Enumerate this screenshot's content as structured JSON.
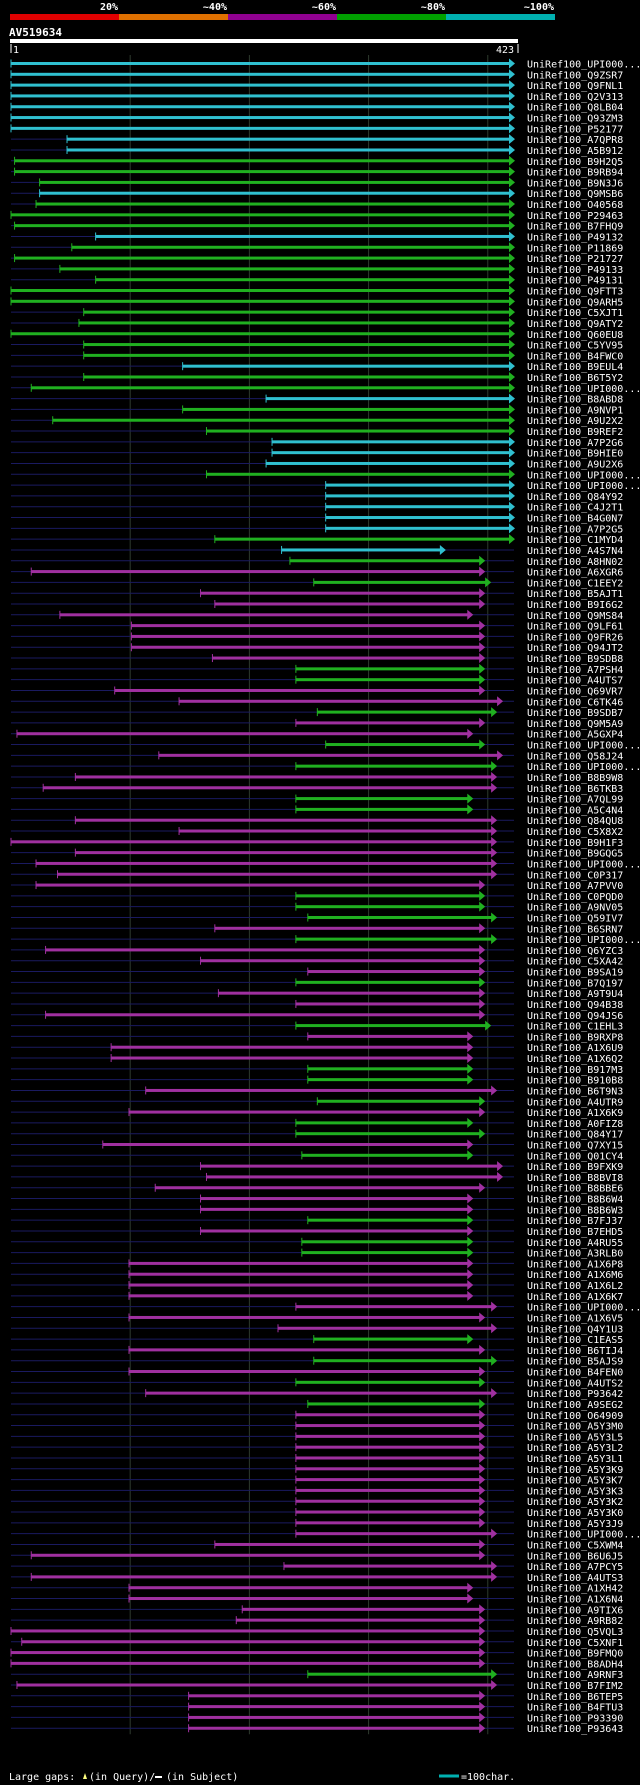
{
  "chart_data": {
    "type": "alignment-overview",
    "query_id": "AV519634",
    "query_start": "1",
    "query_end": "423",
    "query_length": 423,
    "identity_scale": [
      {
        "label": "20%",
        "color": "#e00000"
      },
      {
        "label": "~40%",
        "color": "#e07000"
      },
      {
        "label": "~60%",
        "color": "#900090"
      },
      {
        "label": "~80%",
        "color": "#00a000"
      },
      {
        "label": "~100%",
        "color": "#00b0b0"
      }
    ],
    "footer": {
      "large_gaps_label": "Large gaps:",
      "query_gap_label": "(in Query)/",
      "subject_gap_label": "(in Subject)",
      "scale_label": "=100char."
    },
    "hits": [
      {
        "id": "UniRef100_UPI000...",
        "identity": 5,
        "start": 1,
        "end": 423
      },
      {
        "id": "UniRef100_Q9ZSR7",
        "identity": 5,
        "start": 1,
        "end": 423
      },
      {
        "id": "UniRef100_Q9FNL1",
        "identity": 5,
        "start": 1,
        "end": 423
      },
      {
        "id": "UniRef100_Q2V313",
        "identity": 5,
        "start": 1,
        "end": 423
      },
      {
        "id": "UniRef100_Q8LB04",
        "identity": 5,
        "start": 1,
        "end": 423
      },
      {
        "id": "UniRef100_Q93ZM3",
        "identity": 5,
        "start": 1,
        "end": 423
      },
      {
        "id": "UniRef100_P52177",
        "identity": 5,
        "start": 1,
        "end": 423
      },
      {
        "id": "UniRef100_A7QPR8",
        "identity": 5,
        "start": 48,
        "end": 423
      },
      {
        "id": "UniRef100_A5B912",
        "identity": 5,
        "start": 48,
        "end": 423
      },
      {
        "id": "UniRef100_B9H2Q5",
        "identity": 4,
        "start": 4,
        "end": 423
      },
      {
        "id": "UniRef100_B9RB94",
        "identity": 4,
        "start": 4,
        "end": 423
      },
      {
        "id": "UniRef100_B9N3J6",
        "identity": 4,
        "start": 25,
        "end": 423
      },
      {
        "id": "UniRef100_Q9MSB6",
        "identity": 5,
        "start": 25,
        "end": 423
      },
      {
        "id": "UniRef100_O40568",
        "identity": 4,
        "start": 22,
        "end": 423
      },
      {
        "id": "UniRef100_P29463",
        "identity": 4,
        "start": 1,
        "end": 423
      },
      {
        "id": "UniRef100_B7FHQ9",
        "identity": 4,
        "start": 4,
        "end": 423
      },
      {
        "id": "UniRef100_P49132",
        "identity": 5,
        "start": 72,
        "end": 423
      },
      {
        "id": "UniRef100_P11869",
        "identity": 4,
        "start": 52,
        "end": 423
      },
      {
        "id": "UniRef100_P21727",
        "identity": 4,
        "start": 4,
        "end": 423
      },
      {
        "id": "UniRef100_P49133",
        "identity": 4,
        "start": 42,
        "end": 423
      },
      {
        "id": "UniRef100_P49131",
        "identity": 4,
        "start": 72,
        "end": 423
      },
      {
        "id": "UniRef100_Q9FTT3",
        "identity": 4,
        "start": 1,
        "end": 423
      },
      {
        "id": "UniRef100_Q9ARH5",
        "identity": 4,
        "start": 1,
        "end": 423
      },
      {
        "id": "UniRef100_C5XJT1",
        "identity": 4,
        "start": 62,
        "end": 423
      },
      {
        "id": "UniRef100_Q9ATY2",
        "identity": 4,
        "start": 58,
        "end": 423
      },
      {
        "id": "UniRef100_Q60EU8",
        "identity": 4,
        "start": 1,
        "end": 423
      },
      {
        "id": "UniRef100_C5YV95",
        "identity": 4,
        "start": 62,
        "end": 423
      },
      {
        "id": "UniRef100_B4FWC0",
        "identity": 4,
        "start": 62,
        "end": 423
      },
      {
        "id": "UniRef100_B9EUL4",
        "identity": 5,
        "start": 145,
        "end": 423
      },
      {
        "id": "UniRef100_B6T5Y2",
        "identity": 4,
        "start": 62,
        "end": 423
      },
      {
        "id": "UniRef100_UPI000...",
        "identity": 4,
        "start": 18,
        "end": 423
      },
      {
        "id": "UniRef100_B8ABD8",
        "identity": 5,
        "start": 215,
        "end": 423
      },
      {
        "id": "UniRef100_A9NVP1",
        "identity": 4,
        "start": 145,
        "end": 423
      },
      {
        "id": "UniRef100_A9U2X2",
        "identity": 4,
        "start": 36,
        "end": 423
      },
      {
        "id": "UniRef100_B9REF2",
        "identity": 4,
        "start": 165,
        "end": 423
      },
      {
        "id": "UniRef100_A7P2G6",
        "identity": 5,
        "start": 220,
        "end": 423
      },
      {
        "id": "UniRef100_B9HIE0",
        "identity": 5,
        "start": 220,
        "end": 423
      },
      {
        "id": "UniRef100_A9U2X6",
        "identity": 5,
        "start": 215,
        "end": 423
      },
      {
        "id": "UniRef100_UPI000...",
        "identity": 4,
        "start": 165,
        "end": 423
      },
      {
        "id": "UniRef100_UPI000...",
        "identity": 5,
        "start": 265,
        "end": 423
      },
      {
        "id": "UniRef100_Q84Y92",
        "identity": 5,
        "start": 265,
        "end": 423
      },
      {
        "id": "UniRef100_C4J2T1",
        "identity": 5,
        "start": 265,
        "end": 423
      },
      {
        "id": "UniRef100_B4G0N7",
        "identity": 5,
        "start": 265,
        "end": 423
      },
      {
        "id": "UniRef100_A7P2G5",
        "identity": 5,
        "start": 265,
        "end": 423
      },
      {
        "id": "UniRef100_C1MYD4",
        "identity": 4,
        "start": 172,
        "end": 423
      },
      {
        "id": "UniRef100_A4S7N4",
        "identity": 5,
        "start": 228,
        "end": 365
      },
      {
        "id": "UniRef100_A8HN02",
        "identity": 4,
        "start": 235,
        "end": 398
      },
      {
        "id": "UniRef100_A6XGR6",
        "identity": 3,
        "start": 18,
        "end": 398
      },
      {
        "id": "UniRef100_C1EEY2",
        "identity": 4,
        "start": 255,
        "end": 403
      },
      {
        "id": "UniRef100_B5AJT1",
        "identity": 3,
        "start": 160,
        "end": 398
      },
      {
        "id": "UniRef100_B9I6G2",
        "identity": 3,
        "start": 172,
        "end": 398
      },
      {
        "id": "UniRef100_Q9MS84",
        "identity": 3,
        "start": 42,
        "end": 388
      },
      {
        "id": "UniRef100_Q9LF61",
        "identity": 3,
        "start": 102,
        "end": 398
      },
      {
        "id": "UniRef100_Q9FR26",
        "identity": 3,
        "start": 102,
        "end": 398
      },
      {
        "id": "UniRef100_Q94JT2",
        "identity": 3,
        "start": 102,
        "end": 398
      },
      {
        "id": "UniRef100_B9SDB8",
        "identity": 3,
        "start": 170,
        "end": 398
      },
      {
        "id": "UniRef100_A7PSH4",
        "identity": 4,
        "start": 240,
        "end": 398
      },
      {
        "id": "UniRef100_A4UTS7",
        "identity": 4,
        "start": 240,
        "end": 398
      },
      {
        "id": "UniRef100_Q69VR7",
        "identity": 3,
        "start": 88,
        "end": 398
      },
      {
        "id": "UniRef100_C6TK46",
        "identity": 3,
        "start": 142,
        "end": 413
      },
      {
        "id": "UniRef100_B9SDB7",
        "identity": 4,
        "start": 258,
        "end": 408
      },
      {
        "id": "UniRef100_Q9M5A9",
        "identity": 3,
        "start": 240,
        "end": 398
      },
      {
        "id": "UniRef100_A5GXP4",
        "identity": 3,
        "start": 6,
        "end": 388
      },
      {
        "id": "UniRef100_UPI000...",
        "identity": 4,
        "start": 265,
        "end": 398
      },
      {
        "id": "UniRef100_Q58J24",
        "identity": 3,
        "start": 125,
        "end": 413
      },
      {
        "id": "UniRef100_UPI000...",
        "identity": 4,
        "start": 240,
        "end": 408
      },
      {
        "id": "UniRef100_B8B9W8",
        "identity": 3,
        "start": 55,
        "end": 408
      },
      {
        "id": "UniRef100_B6TKB3",
        "identity": 3,
        "start": 28,
        "end": 408
      },
      {
        "id": "UniRef100_A7QL99",
        "identity": 4,
        "start": 240,
        "end": 388
      },
      {
        "id": "UniRef100_A5C4N4",
        "identity": 4,
        "start": 240,
        "end": 388
      },
      {
        "id": "UniRef100_Q84QU8",
        "identity": 3,
        "start": 55,
        "end": 408
      },
      {
        "id": "UniRef100_C5X8X2",
        "identity": 3,
        "start": 142,
        "end": 408
      },
      {
        "id": "UniRef100_B9H1F3",
        "identity": 3,
        "start": 1,
        "end": 408
      },
      {
        "id": "UniRef100_B9GQG5",
        "identity": 3,
        "start": 55,
        "end": 408
      },
      {
        "id": "UniRef100_UPI000...",
        "identity": 3,
        "start": 22,
        "end": 408
      },
      {
        "id": "UniRef100_C0P317",
        "identity": 3,
        "start": 40,
        "end": 408
      },
      {
        "id": "UniRef100_A7PVV0",
        "identity": 3,
        "start": 22,
        "end": 398
      },
      {
        "id": "UniRef100_C0PQD0",
        "identity": 4,
        "start": 240,
        "end": 398
      },
      {
        "id": "UniRef100_A9NV05",
        "identity": 4,
        "start": 240,
        "end": 398
      },
      {
        "id": "UniRef100_Q59IV7",
        "identity": 4,
        "start": 250,
        "end": 408
      },
      {
        "id": "UniRef100_B6SRN7",
        "identity": 3,
        "start": 172,
        "end": 398
      },
      {
        "id": "UniRef100_UPI000...",
        "identity": 4,
        "start": 240,
        "end": 408
      },
      {
        "id": "UniRef100_Q6YZC3",
        "identity": 3,
        "start": 30,
        "end": 398
      },
      {
        "id": "UniRef100_C5XA42",
        "identity": 3,
        "start": 160,
        "end": 398
      },
      {
        "id": "UniRef100_B9SA19",
        "identity": 3,
        "start": 250,
        "end": 398
      },
      {
        "id": "UniRef100_B7Q197",
        "identity": 4,
        "start": 240,
        "end": 398
      },
      {
        "id": "UniRef100_A9T9U4",
        "identity": 3,
        "start": 175,
        "end": 398
      },
      {
        "id": "UniRef100_Q94B38",
        "identity": 3,
        "start": 240,
        "end": 398
      },
      {
        "id": "UniRef100_Q94JS6",
        "identity": 3,
        "start": 30,
        "end": 398
      },
      {
        "id": "UniRef100_C1EHL3",
        "identity": 4,
        "start": 240,
        "end": 403
      },
      {
        "id": "UniRef100_B9RXP8",
        "identity": 3,
        "start": 250,
        "end": 388
      },
      {
        "id": "UniRef100_A1X6U9",
        "identity": 3,
        "start": 85,
        "end": 388
      },
      {
        "id": "UniRef100_A1X6Q2",
        "identity": 3,
        "start": 85,
        "end": 388
      },
      {
        "id": "UniRef100_B917M3",
        "identity": 4,
        "start": 250,
        "end": 388
      },
      {
        "id": "UniRef100_B910B8",
        "identity": 4,
        "start": 250,
        "end": 388
      },
      {
        "id": "UniRef100_B6T9N3",
        "identity": 3,
        "start": 114,
        "end": 408
      },
      {
        "id": "UniRef100_A4UTR9",
        "identity": 4,
        "start": 258,
        "end": 398
      },
      {
        "id": "UniRef100_A1X6K9",
        "identity": 3,
        "start": 100,
        "end": 398
      },
      {
        "id": "UniRef100_A0FIZ8",
        "identity": 4,
        "start": 240,
        "end": 388
      },
      {
        "id": "UniRef100_Q84Y17",
        "identity": 4,
        "start": 240,
        "end": 398
      },
      {
        "id": "UniRef100_Q7XY15",
        "identity": 3,
        "start": 78,
        "end": 388
      },
      {
        "id": "UniRef100_Q01CY4",
        "identity": 4,
        "start": 245,
        "end": 388
      },
      {
        "id": "UniRef100_B9FXK9",
        "identity": 3,
        "start": 160,
        "end": 413
      },
      {
        "id": "UniRef100_B8BVI8",
        "identity": 3,
        "start": 165,
        "end": 413
      },
      {
        "id": "UniRef100_B8BBE6",
        "identity": 3,
        "start": 122,
        "end": 398
      },
      {
        "id": "UniRef100_B8B6W4",
        "identity": 3,
        "start": 160,
        "end": 388
      },
      {
        "id": "UniRef100_B8B6W3",
        "identity": 3,
        "start": 160,
        "end": 388
      },
      {
        "id": "UniRef100_B7FJ37",
        "identity": 4,
        "start": 250,
        "end": 388
      },
      {
        "id": "UniRef100_B7EHD5",
        "identity": 3,
        "start": 160,
        "end": 388
      },
      {
        "id": "UniRef100_A4RU55",
        "identity": 4,
        "start": 245,
        "end": 388
      },
      {
        "id": "UniRef100_A3RLB0",
        "identity": 4,
        "start": 245,
        "end": 388
      },
      {
        "id": "UniRef100_A1X6P8",
        "identity": 3,
        "start": 100,
        "end": 388
      },
      {
        "id": "UniRef100_A1X6M6",
        "identity": 3,
        "start": 100,
        "end": 388
      },
      {
        "id": "UniRef100_A1X6L2",
        "identity": 3,
        "start": 100,
        "end": 388
      },
      {
        "id": "UniRef100_A1X6K7",
        "identity": 3,
        "start": 100,
        "end": 388
      },
      {
        "id": "UniRef100_UPI000...",
        "identity": 3,
        "start": 240,
        "end": 408
      },
      {
        "id": "UniRef100_A1X6V5",
        "identity": 3,
        "start": 100,
        "end": 398
      },
      {
        "id": "UniRef100_Q4Y1U3",
        "identity": 3,
        "start": 225,
        "end": 408
      },
      {
        "id": "UniRef100_C1EAS5",
        "identity": 4,
        "start": 255,
        "end": 388
      },
      {
        "id": "UniRef100_B6TIJ4",
        "identity": 3,
        "start": 100,
        "end": 398
      },
      {
        "id": "UniRef100_B5AJS9",
        "identity": 4,
        "start": 255,
        "end": 408
      },
      {
        "id": "UniRef100_B4FEN0",
        "identity": 3,
        "start": 100,
        "end": 398
      },
      {
        "id": "UniRef100_A4UTS2",
        "identity": 4,
        "start": 240,
        "end": 398
      },
      {
        "id": "UniRef100_P93642",
        "identity": 3,
        "start": 114,
        "end": 408
      },
      {
        "id": "UniRef100_A9SEG2",
        "identity": 4,
        "start": 250,
        "end": 398
      },
      {
        "id": "UniRef100_O64909",
        "identity": 3,
        "start": 240,
        "end": 398
      },
      {
        "id": "UniRef100_A5Y3M0",
        "identity": 3,
        "start": 240,
        "end": 398
      },
      {
        "id": "UniRef100_A5Y3L5",
        "identity": 3,
        "start": 240,
        "end": 398
      },
      {
        "id": "UniRef100_A5Y3L2",
        "identity": 3,
        "start": 240,
        "end": 398
      },
      {
        "id": "UniRef100_A5Y3L1",
        "identity": 3,
        "start": 240,
        "end": 398
      },
      {
        "id": "UniRef100_A5Y3K9",
        "identity": 3,
        "start": 240,
        "end": 398
      },
      {
        "id": "UniRef100_A5Y3K7",
        "identity": 3,
        "start": 240,
        "end": 398
      },
      {
        "id": "UniRef100_A5Y3K3",
        "identity": 3,
        "start": 240,
        "end": 398
      },
      {
        "id": "UniRef100_A5Y3K2",
        "identity": 3,
        "start": 240,
        "end": 398
      },
      {
        "id": "UniRef100_A5Y3K0",
        "identity": 3,
        "start": 240,
        "end": 398
      },
      {
        "id": "UniRef100_A5Y3J9",
        "identity": 3,
        "start": 240,
        "end": 398
      },
      {
        "id": "UniRef100_UPI000...",
        "identity": 3,
        "start": 240,
        "end": 408
      },
      {
        "id": "UniRef100_C5XWM4",
        "identity": 3,
        "start": 172,
        "end": 398
      },
      {
        "id": "UniRef100_B6U6J5",
        "identity": 3,
        "start": 18,
        "end": 398
      },
      {
        "id": "UniRef100_A7PCY5",
        "identity": 3,
        "start": 230,
        "end": 408
      },
      {
        "id": "UniRef100_A4UTS3",
        "identity": 3,
        "start": 18,
        "end": 408
      },
      {
        "id": "UniRef100_A1XH42",
        "identity": 3,
        "start": 100,
        "end": 388
      },
      {
        "id": "UniRef100_A1X6N4",
        "identity": 3,
        "start": 100,
        "end": 388
      },
      {
        "id": "UniRef100_A9TIX6",
        "identity": 3,
        "start": 195,
        "end": 398
      },
      {
        "id": "UniRef100_A9RB82",
        "identity": 3,
        "start": 190,
        "end": 398
      },
      {
        "id": "UniRef100_Q5VQL3",
        "identity": 3,
        "start": 1,
        "end": 398
      },
      {
        "id": "UniRef100_C5XNF1",
        "identity": 3,
        "start": 10,
        "end": 398
      },
      {
        "id": "UniRef100_B9FMQ0",
        "identity": 3,
        "start": 1,
        "end": 398
      },
      {
        "id": "UniRef100_B8ADH4",
        "identity": 3,
        "start": 1,
        "end": 398
      },
      {
        "id": "UniRef100_A9RNF3",
        "identity": 4,
        "start": 250,
        "end": 408
      },
      {
        "id": "UniRef100_B7FIM2",
        "identity": 3,
        "start": 6,
        "end": 408
      },
      {
        "id": "UniRef100_B6TEP5",
        "identity": 3,
        "start": 150,
        "end": 398
      },
      {
        "id": "UniRef100_B4FTU3",
        "identity": 3,
        "start": 150,
        "end": 398
      },
      {
        "id": "UniRef100_P93390",
        "identity": 3,
        "start": 150,
        "end": 398
      },
      {
        "id": "UniRef100_P93643",
        "identity": 3,
        "start": 150,
        "end": 398
      }
    ]
  }
}
